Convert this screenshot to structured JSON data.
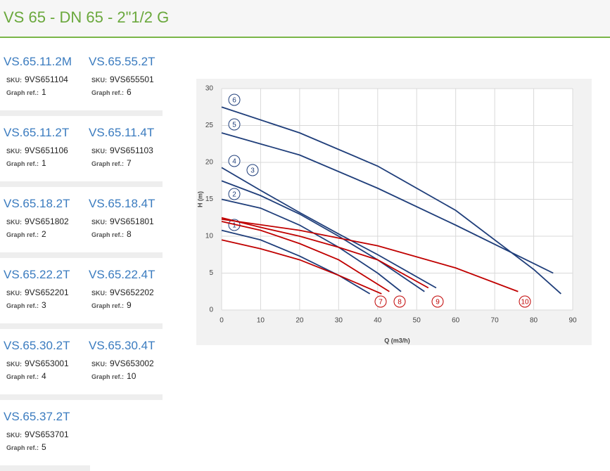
{
  "header": {
    "title": "VS 65 - DN 65 - 2\"1/2 G"
  },
  "labels": {
    "sku": "SKU:",
    "ref": "Graph ref.:"
  },
  "products": [
    {
      "name": "VS.65.11.2M",
      "sku": "9VS651104",
      "ref": 1
    },
    {
      "name": "VS.65.55.2T",
      "sku": "9VS655501",
      "ref": 6
    },
    {
      "name": "VS.65.11.2T",
      "sku": "9VS651106",
      "ref": 1
    },
    {
      "name": "VS.65.11.4T",
      "sku": "9VS651103",
      "ref": 7
    },
    {
      "name": "VS.65.18.2T",
      "sku": "9VS651802",
      "ref": 2
    },
    {
      "name": "VS.65.18.4T",
      "sku": "9VS651801",
      "ref": 8
    },
    {
      "name": "VS.65.22.2T",
      "sku": "9VS652201",
      "ref": 3
    },
    {
      "name": "VS.65.22.4T",
      "sku": "9VS652202",
      "ref": 9
    },
    {
      "name": "VS.65.30.2T",
      "sku": "9VS653001",
      "ref": 4
    },
    {
      "name": "VS.65.30.4T",
      "sku": "9VS653002",
      "ref": 10
    },
    {
      "name": "VS.65.37.2T",
      "sku": "9VS653701",
      "ref": 5
    }
  ],
  "chart_data": {
    "type": "line",
    "xlabel": "Q (m3/h)",
    "ylabel": "H (m)",
    "xlim": [
      0,
      90
    ],
    "ylim": [
      0,
      30
    ],
    "xticks": [
      0,
      10,
      20,
      30,
      40,
      50,
      60,
      70,
      80,
      90
    ],
    "yticks": [
      0,
      5,
      10,
      15,
      20,
      25,
      30
    ],
    "grid": true,
    "series": [
      {
        "name": "1",
        "color": "#1f3e7a",
        "x": [
          0,
          10,
          20,
          30,
          38
        ],
        "values": [
          10.8,
          9.5,
          7.3,
          4.7,
          2.2
        ]
      },
      {
        "name": "2",
        "color": "#1f3e7a",
        "x": [
          0,
          10,
          20,
          30,
          40,
          46
        ],
        "values": [
          15,
          13.8,
          11.5,
          8.5,
          5,
          2.5
        ]
      },
      {
        "name": "3",
        "color": "#1f3e7a",
        "x": [
          0,
          10,
          20,
          30,
          40,
          52
        ],
        "values": [
          17.5,
          15.5,
          13,
          10,
          6.8,
          2.5
        ]
      },
      {
        "name": "4",
        "color": "#1f3e7a",
        "x": [
          0,
          10,
          20,
          30,
          40,
          55
        ],
        "values": [
          19.3,
          16.2,
          13.2,
          10.3,
          7.5,
          3
        ]
      },
      {
        "name": "5",
        "color": "#1f3e7a",
        "x": [
          0,
          20,
          40,
          60,
          85
        ],
        "values": [
          24,
          21,
          16.5,
          11.5,
          5
        ]
      },
      {
        "name": "6",
        "color": "#1f3e7a",
        "x": [
          0,
          20,
          40,
          60,
          80,
          87
        ],
        "values": [
          27.5,
          24,
          19.5,
          13.5,
          5.5,
          2.2
        ]
      },
      {
        "name": "7",
        "color": "#c00000",
        "x": [
          0,
          10,
          20,
          30,
          41
        ],
        "values": [
          9.5,
          8.3,
          6.8,
          4.7,
          2.2
        ]
      },
      {
        "name": "8",
        "color": "#c00000",
        "x": [
          0,
          10,
          20,
          30,
          43
        ],
        "values": [
          12,
          10.8,
          9,
          6.8,
          2.5
        ]
      },
      {
        "name": "9",
        "color": "#c00000",
        "x": [
          0,
          10,
          20,
          30,
          40,
          53
        ],
        "values": [
          12.5,
          11.2,
          10,
          8.5,
          6.8,
          3
        ]
      },
      {
        "name": "10",
        "color": "#c00000",
        "x": [
          0,
          20,
          40,
          60,
          76
        ],
        "values": [
          12.3,
          10.8,
          8.7,
          5.7,
          2.5
        ]
      }
    ]
  }
}
